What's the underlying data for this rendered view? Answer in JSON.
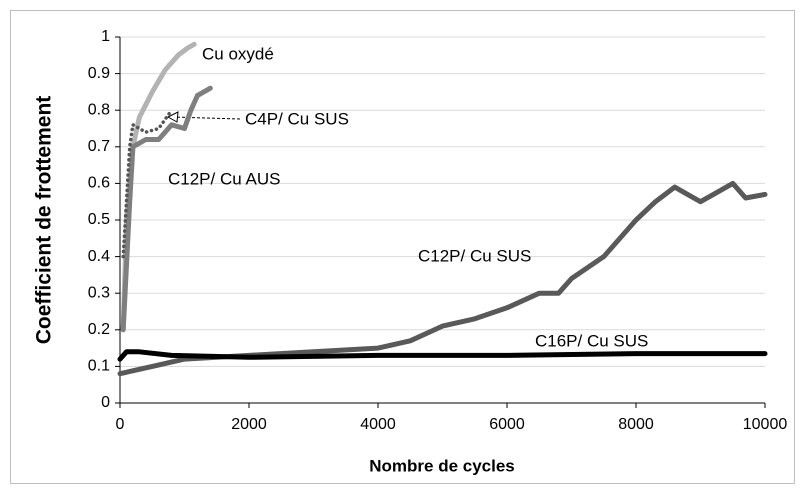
{
  "chart_data": {
    "type": "line",
    "x_label": "Nombre de cycles",
    "y_label": "Coefficient de frottement",
    "xlim": [
      0,
      10000
    ],
    "xticks": [
      0,
      2000,
      4000,
      6000,
      8000,
      10000
    ],
    "ylim": [
      0,
      1
    ],
    "yticks": [
      0,
      0.1,
      0.2,
      0.3,
      0.4,
      0.5,
      0.6,
      0.7,
      0.8,
      0.9,
      1
    ],
    "grid": true,
    "series": [
      {
        "name": "Cu oxydé",
        "color": "#b3b3b3",
        "style": "solid",
        "x": [
          50,
          100,
          200,
          300,
          500,
          700,
          900,
          1050,
          1150
        ],
        "values": [
          0.2,
          0.5,
          0.7,
          0.78,
          0.85,
          0.91,
          0.95,
          0.97,
          0.98
        ]
      },
      {
        "name": "C12P/ Cu AUS",
        "color": "#7f7f7f",
        "style": "solid",
        "x": [
          50,
          150,
          200,
          400,
          600,
          800,
          1000,
          1100,
          1200,
          1400
        ],
        "values": [
          0.2,
          0.55,
          0.7,
          0.72,
          0.72,
          0.76,
          0.75,
          0.8,
          0.84,
          0.86
        ]
      },
      {
        "name": "C4P/ Cu SUS",
        "color": "#555555",
        "style": "dotted",
        "x": [
          50,
          150,
          200,
          400,
          600,
          800
        ],
        "values": [
          0.4,
          0.7,
          0.76,
          0.74,
          0.75,
          0.8
        ]
      },
      {
        "name": "C12P/ Cu SUS",
        "color": "#595959",
        "style": "solid",
        "x": [
          0,
          500,
          1000,
          2000,
          3000,
          4000,
          4500,
          5000,
          5500,
          6000,
          6500,
          6800,
          7000,
          7500,
          8000,
          8300,
          8600,
          8800,
          9000,
          9200,
          9500,
          9700,
          10000
        ],
        "values": [
          0.08,
          0.1,
          0.12,
          0.13,
          0.14,
          0.15,
          0.17,
          0.21,
          0.23,
          0.26,
          0.3,
          0.3,
          0.34,
          0.4,
          0.5,
          0.55,
          0.59,
          0.57,
          0.55,
          0.57,
          0.6,
          0.56,
          0.57
        ]
      },
      {
        "name": "C16P/ Cu SUS",
        "color": "#000000",
        "style": "solid",
        "x": [
          0,
          100,
          300,
          800,
          2000,
          4000,
          6000,
          8000,
          10000
        ],
        "values": [
          0.12,
          0.14,
          0.14,
          0.13,
          0.125,
          0.13,
          0.13,
          0.135,
          0.135
        ]
      }
    ]
  }
}
